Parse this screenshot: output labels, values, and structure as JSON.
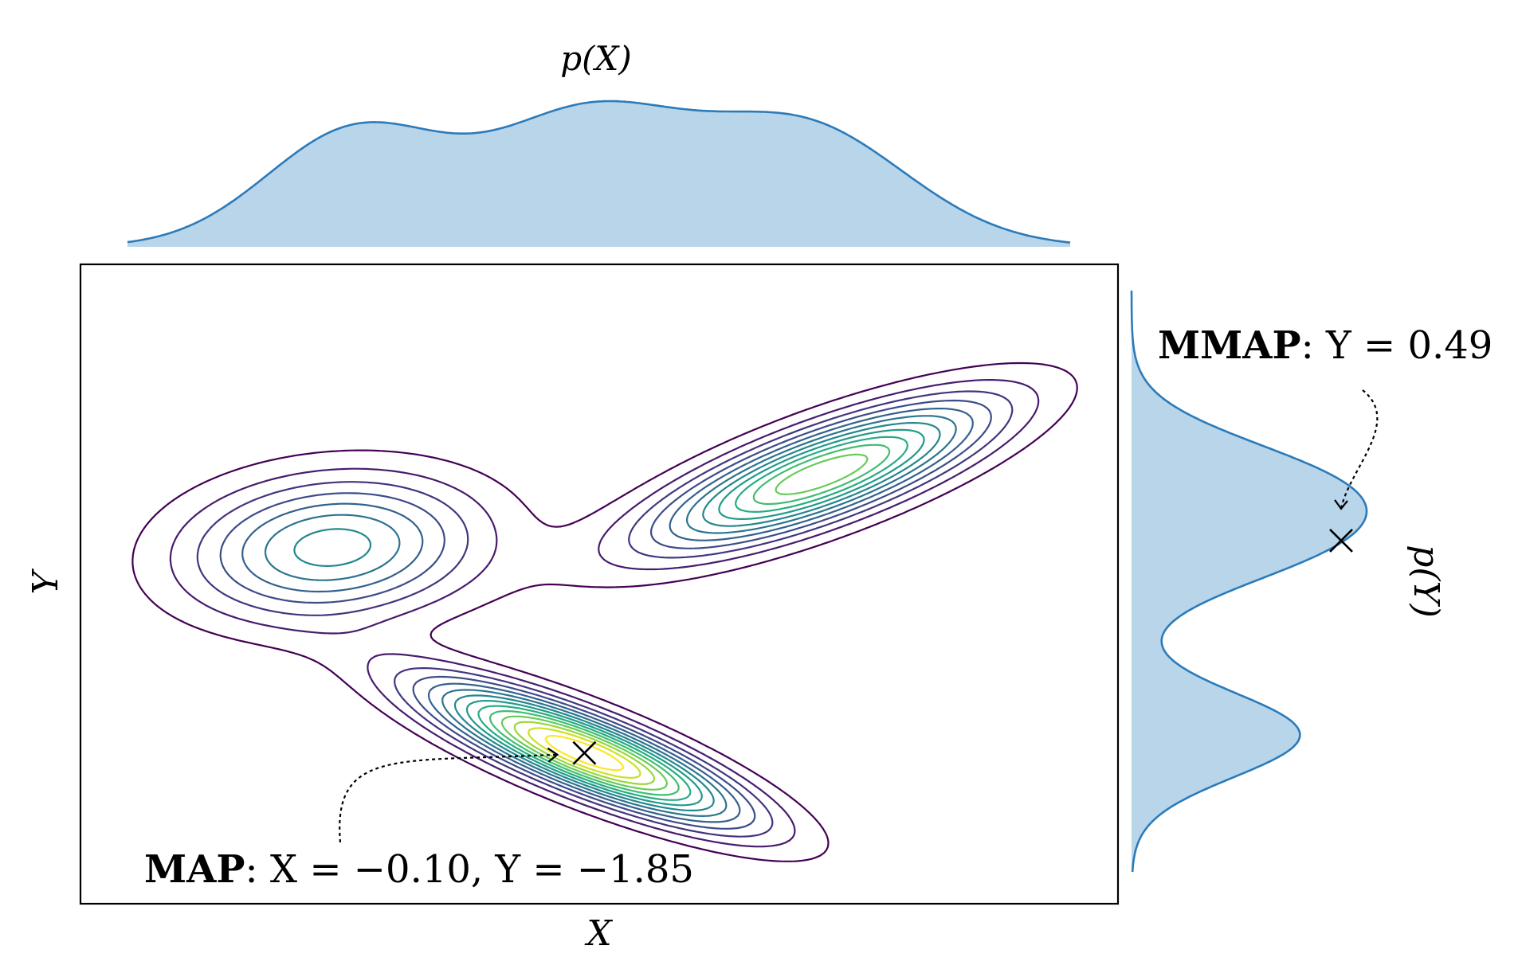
{
  "chart_data": {
    "type": "contour",
    "title": "",
    "xlabel": "X",
    "ylabel": "Y",
    "xlim": [
      -3.5,
      3.5
    ],
    "ylim": [
      -3.5,
      3.5
    ],
    "grid": false,
    "axis_ticks": false,
    "colormap": "viridis",
    "contour_levels": 14,
    "components": [
      {
        "weight": 0.3,
        "mean": [
          -1.8,
          0.4
        ],
        "cov": [
          [
            0.45,
            0.05
          ],
          [
            0.05,
            0.28
          ]
        ]
      },
      {
        "weight": 0.34,
        "mean": [
          -0.1,
          -1.85
        ],
        "cov": [
          [
            0.5,
            -0.3
          ],
          [
            -0.3,
            0.26
          ]
        ]
      },
      {
        "weight": 0.36,
        "mean": [
          1.5,
          1.2
        ],
        "cov": [
          [
            0.6,
            0.33
          ],
          [
            0.33,
            0.3
          ]
        ]
      }
    ],
    "marginals": {
      "top": {
        "label": "p(X)",
        "fill_color": "#b9d5ea",
        "line_color": "#2b7bba"
      },
      "right": {
        "label": "p(Y)",
        "fill_color": "#b9d5ea",
        "line_color": "#2b7bba"
      }
    },
    "annotations": {
      "map": {
        "bold_label": "MAP",
        "text": ": X = −0.10, Y = −1.85",
        "x": -0.1,
        "y": -1.85
      },
      "mmap": {
        "bold_label": "MMAP",
        "text": ": Y = 0.49",
        "y": 0.49
      }
    }
  }
}
